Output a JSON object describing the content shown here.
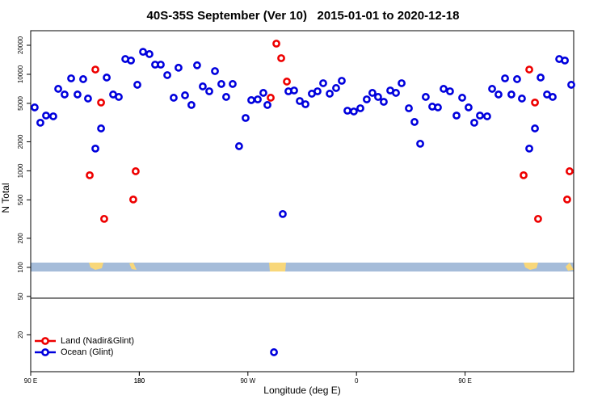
{
  "chart_data": {
    "type": "scatter",
    "title": "40S-35S September (Ver 10)   2015-01-01 to 2020-12-18",
    "xlabel": "Longitude (deg E)",
    "ylabel": "N Total",
    "xlim": [
      90,
      540
    ],
    "ylim": [
      8.3,
      28300
    ],
    "yscale": "log",
    "legend": "bottom-left",
    "xticks": [
      {
        "value": 90,
        "label": "90 E"
      },
      180,
      {
        "value": 270,
        "label": "90 W"
      },
      {
        "value": 360,
        "label": "0"
      },
      {
        "value": 450,
        "label": "90 E"
      },
      180.0001
    ],
    "yticks": [
      20,
      50,
      100,
      200,
      500,
      1000,
      2000,
      5000,
      10000,
      20000
    ],
    "series": [
      {
        "name": "Land (Nadir&Glint)",
        "color": "#ee0000",
        "x": [
          138.9,
          143.6,
          148.3,
          150.9,
          175.0,
          177.0,
          288.9,
          293.6,
          297.6,
          302.3,
          498.5,
          503.2,
          507.9,
          510.5,
          534.6,
          536.6
        ],
        "values": [
          900,
          11200,
          5100,
          318,
          505,
          990,
          5720,
          20800,
          14700,
          8410,
          900,
          11200,
          5100,
          318,
          505,
          990
        ]
      },
      {
        "name": "Ocean (Glint)",
        "color": "#0000dd",
        "x": [
          93.3,
          98.0,
          102.7,
          108.7,
          112.8,
          118.1,
          123.5,
          128.8,
          133.5,
          137.5,
          143.6,
          148.3,
          153.0,
          158.3,
          163.0,
          168.4,
          173.1,
          178.4,
          183.1,
          188.4,
          193.1,
          197.8,
          203.2,
          208.5,
          212.5,
          217.9,
          223.2,
          227.9,
          232.6,
          238.0,
          242.7,
          248.0,
          252.0,
          257.4,
          262.7,
          268.1,
          272.8,
          278.2,
          282.8,
          286.2,
          291.6,
          298.9,
          303.6,
          308.3,
          313.0,
          317.7,
          323.0,
          327.7,
          332.4,
          337.8,
          343.1,
          347.8,
          352.5,
          357.8,
          363.2,
          368.5,
          373.2,
          377.9,
          382.6,
          388.0,
          392.7,
          397.4,
          403.4,
          408.1,
          412.8,
          417.4,
          422.8,
          427.5,
          432.2,
          437.5,
          442.9,
          447.6,
          452.9,
          457.6,
          462.3,
          468.3,
          472.4,
          477.7,
          483.1,
          488.4,
          493.1,
          497.1,
          503.2,
          507.9,
          512.6,
          517.9,
          522.6,
          528.0,
          532.7,
          538.0
        ],
        "values": [
          4540,
          3150,
          3740,
          3670,
          7070,
          6180,
          9080,
          6180,
          8910,
          5610,
          1700,
          2750,
          9260,
          6180,
          5830,
          14400,
          13900,
          7790,
          17100,
          16200,
          12600,
          12600,
          9810,
          5720,
          11700,
          6060,
          4810,
          12400,
          7490,
          6670,
          10800,
          7940,
          5830,
          7940,
          1800,
          3530,
          5400,
          5500,
          6420,
          4810,
          13.2,
          357,
          6670,
          6800,
          5290,
          4900,
          6300,
          6670,
          8090,
          6300,
          7210,
          8570,
          4200,
          4120,
          4450,
          5500,
          6420,
          5830,
          5190,
          6800,
          6420,
          8090,
          4450,
          3210,
          1910,
          5830,
          4630,
          4540,
          7070,
          6670,
          3740,
          5720,
          4540,
          3150,
          3740,
          3670,
          7070,
          6180,
          9080,
          6180,
          8910,
          5610,
          1700,
          2750,
          9260,
          6180,
          5830,
          14400,
          13900,
          7790
        ]
      }
    ]
  }
}
